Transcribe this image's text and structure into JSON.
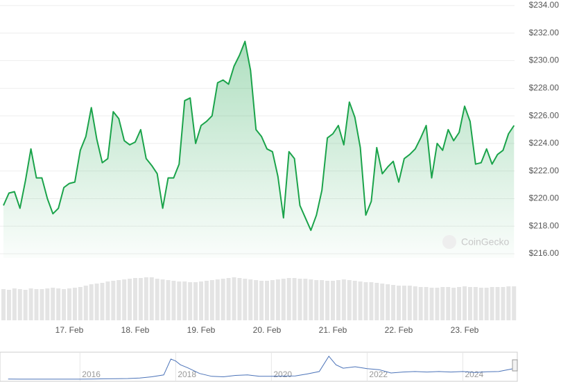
{
  "chart_data": [
    {
      "type": "area",
      "categories": [
        null,
        null,
        null,
        null,
        null,
        null,
        null,
        null,
        null,
        null,
        null,
        null,
        "17. Feb",
        null,
        null,
        null,
        null,
        null,
        null,
        null,
        null,
        null,
        null,
        null,
        "18. Feb",
        null,
        null,
        null,
        null,
        null,
        null,
        null,
        null,
        null,
        null,
        null,
        "19. Feb",
        null,
        null,
        null,
        null,
        null,
        null,
        null,
        null,
        null,
        null,
        null,
        "20. Feb",
        null,
        null,
        null,
        null,
        null,
        null,
        null,
        null,
        null,
        null,
        null,
        "21. Feb",
        null,
        null,
        null,
        null,
        null,
        null,
        null,
        null,
        null,
        null,
        null,
        "22. Feb",
        null,
        null,
        null,
        null,
        null,
        null,
        null,
        null,
        null,
        null,
        null,
        "23. Feb",
        null,
        null,
        null,
        null,
        null,
        null,
        null,
        null,
        null
      ],
      "series": [
        {
          "color": "#1aa34a",
          "values": [
            219.5,
            220.4,
            220.5,
            219.3,
            221.3,
            223.6,
            221.5,
            221.5,
            220.0,
            218.9,
            219.3,
            220.8,
            221.1,
            221.2,
            223.5,
            224.5,
            226.6,
            224.3,
            222.6,
            222.9,
            226.3,
            225.8,
            224.2,
            223.9,
            224.1,
            225.0,
            222.9,
            222.4,
            221.8,
            219.3,
            221.5,
            221.5,
            222.5,
            227.1,
            227.3,
            224.0,
            225.3,
            225.6,
            226.0,
            228.4,
            228.6,
            228.3,
            229.6,
            230.4,
            231.4,
            229.3,
            225.0,
            224.5,
            223.6,
            223.4,
            221.6,
            218.6,
            223.4,
            222.9,
            219.5,
            218.6,
            217.7,
            218.8,
            220.6,
            224.4,
            224.7,
            225.3,
            223.9,
            227.0,
            225.9,
            223.7,
            218.8,
            219.8,
            223.7,
            221.8,
            222.3,
            222.7,
            221.2,
            222.9,
            223.2,
            223.6,
            224.4,
            225.3,
            221.5,
            224.0,
            223.5,
            225.0,
            224.2,
            224.8,
            226.7,
            225.6,
            222.5,
            222.6,
            223.6,
            222.5,
            223.2,
            223.5,
            224.7,
            225.3
          ]
        },
        {
          "axis": "volume",
          "color": "#e4e4e4",
          "values": [
            45,
            44,
            46,
            45,
            44,
            46,
            45,
            45,
            46,
            47,
            46,
            45,
            46,
            47,
            48,
            50,
            52,
            53,
            54,
            56,
            57,
            58,
            59,
            60,
            61,
            61,
            62,
            62,
            60,
            59,
            58,
            57,
            56,
            56,
            55,
            55,
            56,
            57,
            58,
            59,
            60,
            61,
            62,
            61,
            60,
            59,
            58,
            57,
            57,
            58,
            59,
            60,
            61,
            61,
            60,
            60,
            59,
            58,
            58,
            57,
            57,
            58,
            59,
            58,
            57,
            56,
            55,
            55,
            54,
            53,
            52,
            51,
            50,
            50,
            50,
            49,
            48,
            48,
            47,
            47,
            48,
            48,
            47,
            48,
            49,
            48,
            48,
            47,
            47,
            48,
            48,
            48,
            49,
            49
          ]
        }
      ],
      "ylim": [
        215,
        234.4
      ],
      "yticks": [
        {
          "value": 216,
          "label": "$216.00"
        },
        {
          "value": 218,
          "label": "$218.00"
        },
        {
          "value": 220,
          "label": "$220.00"
        },
        {
          "value": 222,
          "label": "$222.00"
        },
        {
          "value": 224,
          "label": "$224.00"
        },
        {
          "value": 226,
          "label": "$226.00"
        },
        {
          "value": 228,
          "label": "$228.00"
        },
        {
          "value": 230,
          "label": "$230.00"
        },
        {
          "value": 232,
          "label": "$232.00"
        },
        {
          "value": 234,
          "label": "$234.00"
        }
      ],
      "volume_lim": [
        0,
        64
      ],
      "grid": true,
      "watermark": "CoinGecko"
    },
    {
      "type": "line",
      "x": [
        2014.5,
        2014.75,
        2015,
        2015.25,
        2015.5,
        2015.75,
        2016,
        2016.25,
        2016.5,
        2016.75,
        2017,
        2017.25,
        2017.5,
        2017.75,
        2017.9,
        2018,
        2018.1,
        2018.25,
        2018.5,
        2018.75,
        2019,
        2019.25,
        2019.5,
        2019.75,
        2020,
        2020.25,
        2020.5,
        2020.75,
        2021,
        2021.2,
        2021.35,
        2021.5,
        2021.75,
        2022,
        2022.25,
        2022.5,
        2022.75,
        2023,
        2023.25,
        2023.5,
        2023.75,
        2024,
        2024.25,
        2024.5,
        2024.75,
        2025,
        2025.08
      ],
      "values": [
        3,
        2,
        1,
        1,
        1,
        1,
        2,
        5,
        8,
        12,
        15,
        25,
        50,
        90,
        420,
        380,
        300,
        240,
        120,
        60,
        50,
        80,
        90,
        60,
        60,
        65,
        70,
        110,
        160,
        480,
        300,
        230,
        260,
        220,
        200,
        130,
        150,
        160,
        150,
        160,
        150,
        160,
        140,
        155,
        160,
        210,
        225
      ],
      "color": "#4a72b8",
      "xlim": [
        2014.33,
        2025.08
      ],
      "xticks": [
        2016,
        2018,
        2020,
        2022,
        2024
      ],
      "ylim": [
        0,
        520
      ]
    }
  ]
}
